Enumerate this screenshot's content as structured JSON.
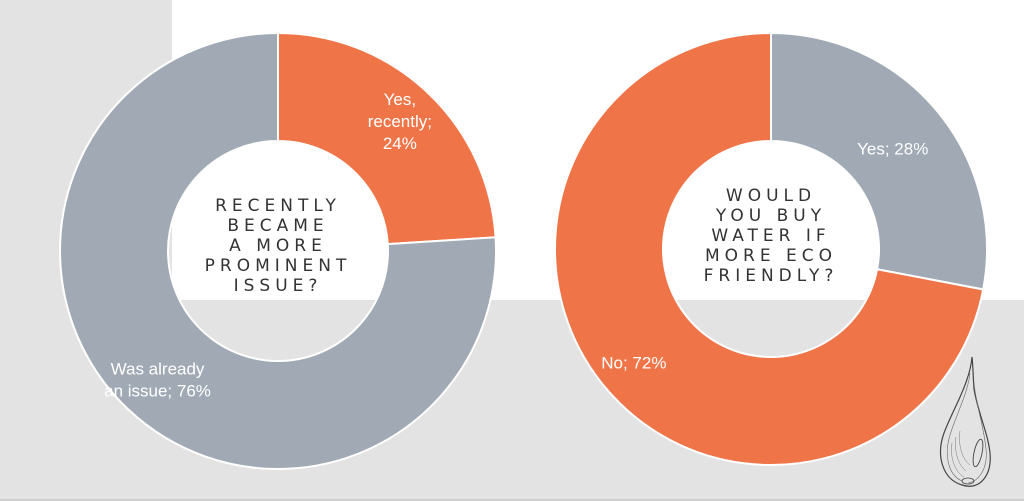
{
  "chart_data": [
    {
      "type": "pie",
      "title": "RECENTLY BECAME A MORE PROMINENT ISSUE?",
      "title_lines": [
        "RECENTLY",
        "BECAME",
        "A MORE",
        "PROMINENT",
        "ISSUE?"
      ],
      "slices": [
        {
          "label": "Yes, recently; 24%",
          "label_lines": [
            "Yes,",
            "recently;",
            "24%"
          ],
          "value": 24,
          "color": "#ef7548"
        },
        {
          "label": "Was already an issue; 76%",
          "label_lines": [
            "Was already",
            "an issue; 76%"
          ],
          "value": 76,
          "color": "#a1aab4"
        }
      ]
    },
    {
      "type": "pie",
      "title": "WOULD YOU BUY WATER IF MORE ECO FRIENDLY?",
      "title_lines": [
        "WOULD",
        "YOU BUY",
        "WATER IF",
        "MORE ECO",
        "FRIENDLY?"
      ],
      "slices": [
        {
          "label": "Yes; 28%",
          "label_lines": [
            "Yes; 28%"
          ],
          "value": 28,
          "color": "#a1aab4"
        },
        {
          "label": "No; 72%",
          "label_lines": [
            "No; 72%"
          ],
          "value": 72,
          "color": "#ef7548"
        }
      ]
    }
  ],
  "decoration": {
    "icon": "water-drop-icon",
    "background_color": "#e3e3e3"
  }
}
